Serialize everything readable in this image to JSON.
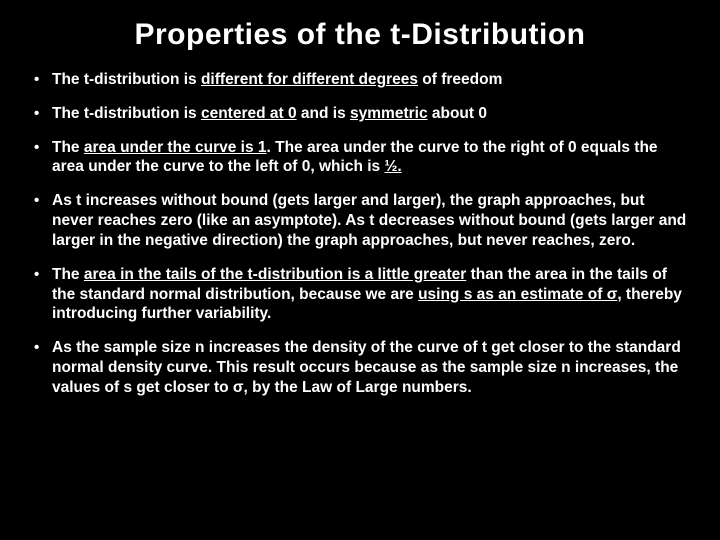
{
  "background_color": "#000000",
  "text_color": "#ffffff",
  "title": "Properties of the t-Distribution",
  "title_fontsize": 30,
  "body_fontsize": 15.5,
  "bullets": [
    {
      "segments": [
        {
          "text": "The t-distribution is "
        },
        {
          "text": "different for different degrees",
          "underline": true
        },
        {
          "text": " of freedom"
        }
      ]
    },
    {
      "segments": [
        {
          "text": "The t-distribution is "
        },
        {
          "text": "centered at 0",
          "underline": true
        },
        {
          "text": " and is "
        },
        {
          "text": "symmetric",
          "underline": true
        },
        {
          "text": " about 0"
        }
      ]
    },
    {
      "segments": [
        {
          "text": "The "
        },
        {
          "text": "area under the curve is 1",
          "underline": true
        },
        {
          "text": ".  The area under the curve to the right of 0 equals the area under the curve to the left of 0, which is "
        },
        {
          "text": "½.",
          "underline": true
        }
      ]
    },
    {
      "segments": [
        {
          "text": "As t increases without bound (gets larger and larger), the graph approaches, but never reaches zero (like an asymptote).  As t decreases without bound (gets larger and larger in the negative direction) the graph approaches, but never reaches, zero."
        }
      ]
    },
    {
      "segments": [
        {
          "text": "The "
        },
        {
          "text": "area in the tails of the t-distribution is a little greater",
          "underline": true
        },
        {
          "text": " than the area in the tails of the standard normal distribution, because we are "
        },
        {
          "text": "using s as an estimate of σ",
          "underline": true
        },
        {
          "text": ", thereby introducing further variability."
        }
      ]
    },
    {
      "segments": [
        {
          "text": "As the sample size n increases the density of the curve of t get closer to the standard normal density curve.  This result occurs because as the sample size n increases, the values of s get closer to σ, by the Law of Large numbers."
        }
      ]
    }
  ]
}
